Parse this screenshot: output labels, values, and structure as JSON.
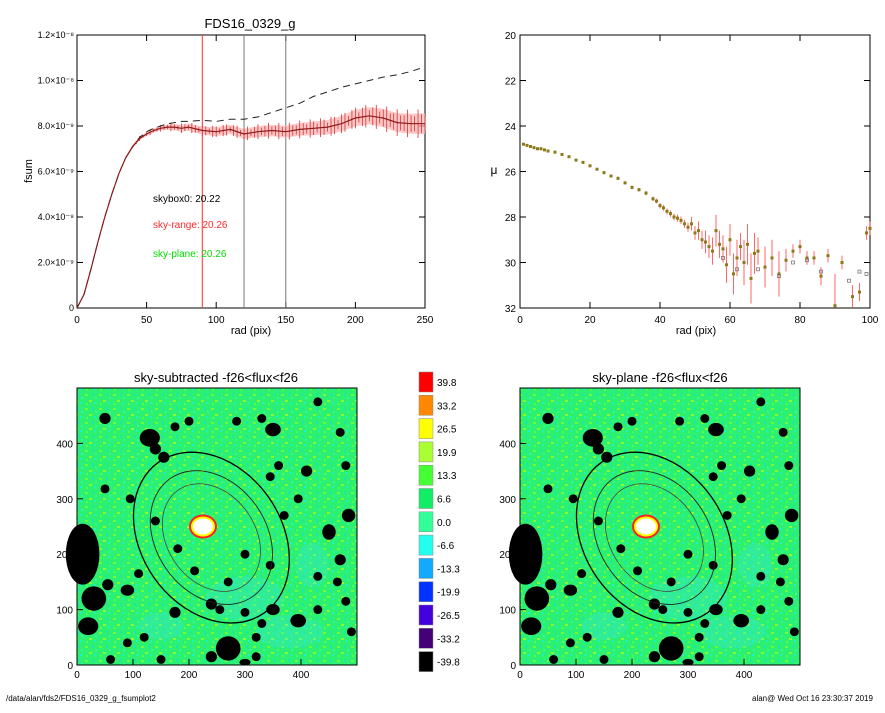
{
  "footer": {
    "path": "/data/alan/fds2/FDS16_0329_g_fsumplot2",
    "stamp": "alan@  Wed Oct 16 23:30:37 2019"
  },
  "chart_data": [
    {
      "type": "line",
      "title": "FDS16_0329_g",
      "xlabel": "rad (pix)",
      "ylabel": "fsum",
      "xlim": [
        0,
        250
      ],
      "ylim": [
        0,
        1.2e-08
      ],
      "xticks": [
        "0",
        "50",
        "100",
        "150",
        "200",
        "250"
      ],
      "yticks": [
        "0",
        "2.0×10⁻⁹",
        "4.0×10⁻⁹",
        "6.0×10⁻⁹",
        "8.0×10⁻⁹",
        "1.0×10⁻⁸",
        "1.2×10⁻⁸"
      ],
      "ytick_values": [
        0,
        2e-09,
        4e-09,
        6e-09,
        8e-09,
        1e-08,
        1.2e-08
      ],
      "vlines": [
        {
          "x": 90,
          "color": "#ff2a2a"
        },
        {
          "x": 120,
          "color": "#777777"
        },
        {
          "x": 150,
          "color": "#777777"
        }
      ],
      "annotations": [
        {
          "text": "skybox0: 20.22",
          "color": "#000000"
        },
        {
          "text": "sky-range: 20.26",
          "color": "#ff2a2a"
        },
        {
          "text": "sky-plane: 20.26",
          "color": "#00dd00"
        }
      ],
      "series": [
        {
          "style": "dashed",
          "color": "#222222",
          "x": [
            0,
            5,
            10,
            15,
            20,
            25,
            30,
            35,
            40,
            45,
            50,
            55,
            60,
            65,
            70,
            75,
            80,
            90,
            100,
            110,
            120,
            130,
            140,
            150,
            160,
            170,
            180,
            190,
            200,
            210,
            220,
            230,
            240,
            250
          ],
          "y": [
            0,
            6e-10,
            1.7e-09,
            2.9e-09,
            4e-09,
            5e-09,
            5.9e-09,
            6.6e-09,
            7.1e-09,
            7.5e-09,
            7.75e-09,
            7.9e-09,
            8e-09,
            8.1e-09,
            8.15e-09,
            8.2e-09,
            8.2e-09,
            8.25e-09,
            8.2e-09,
            8.3e-09,
            8.3e-09,
            8.4e-09,
            8.6e-09,
            8.8e-09,
            9e-09,
            9.3e-09,
            9.5e-09,
            9.7e-09,
            9.85e-09,
            1e-08,
            1.015e-08,
            1.025e-08,
            1.04e-08,
            1.06e-08
          ]
        },
        {
          "style": "solid-errorbars",
          "color": "#8b1a1a",
          "errcolor": "#ff6060",
          "x": [
            0,
            5,
            10,
            15,
            20,
            25,
            30,
            35,
            40,
            45,
            50,
            55,
            60,
            65,
            70,
            75,
            80,
            90,
            100,
            110,
            120,
            130,
            140,
            150,
            160,
            170,
            180,
            190,
            200,
            210,
            220,
            230,
            240,
            250
          ],
          "y": [
            0,
            6e-10,
            1.7e-09,
            2.9e-09,
            4e-09,
            5e-09,
            5.9e-09,
            6.6e-09,
            7.1e-09,
            7.45e-09,
            7.65e-09,
            7.8e-09,
            7.9e-09,
            7.95e-09,
            7.95e-09,
            7.9e-09,
            7.95e-09,
            7.8e-09,
            7.75e-09,
            7.85e-09,
            7.65e-09,
            7.75e-09,
            7.8e-09,
            7.75e-09,
            7.85e-09,
            7.9e-09,
            7.95e-09,
            8.1e-09,
            8.35e-09,
            8.45e-09,
            8.35e-09,
            8.15e-09,
            8.1e-09,
            8.1e-09
          ],
          "err": [
            0,
            0,
            0,
            0,
            0,
            0,
            0,
            5e-11,
            7e-11,
            8e-11,
            9e-11,
            1e-10,
            1e-10,
            1.2e-10,
            1.4e-10,
            1.5e-10,
            1.6e-10,
            1.8e-10,
            2e-10,
            2e-10,
            2.2e-10,
            2.4e-10,
            2.5e-10,
            2.6e-10,
            2.8e-10,
            3e-10,
            3.2e-10,
            3.4e-10,
            3.6e-10,
            3.8e-10,
            4e-10,
            4.2e-10,
            4.4e-10,
            4.6e-10
          ]
        }
      ]
    },
    {
      "type": "scatter",
      "xlabel": "rad (pix)",
      "ylabel": "μ",
      "xlim": [
        0,
        100
      ],
      "ylim": [
        32,
        20
      ],
      "xticks": [
        "0",
        "20",
        "40",
        "60",
        "80",
        "100"
      ],
      "yticks": [
        "20",
        "22",
        "24",
        "26",
        "28",
        "30",
        "32"
      ],
      "ytick_values": [
        20,
        22,
        24,
        26,
        28,
        30,
        32
      ],
      "series": [
        {
          "color": "#8b7a1a",
          "x": [
            1,
            2,
            3,
            4,
            5,
            6,
            7,
            8,
            10,
            12,
            14,
            16,
            18,
            20,
            22,
            24,
            26,
            28,
            30,
            32,
            34,
            36,
            38,
            39,
            40,
            41,
            42,
            43,
            44,
            45,
            46,
            47,
            48,
            49,
            50,
            51,
            52,
            53,
            54,
            55,
            56,
            57,
            58,
            59,
            60,
            61,
            62,
            63,
            64,
            65,
            66,
            67,
            68,
            70,
            72,
            74,
            76,
            78,
            80,
            82,
            84,
            86,
            88,
            90,
            92,
            95,
            97,
            99,
            100
          ],
          "y": [
            24.8,
            24.85,
            24.9,
            24.95,
            25.0,
            25.0,
            25.05,
            25.1,
            25.15,
            25.25,
            25.35,
            25.5,
            25.6,
            25.75,
            25.9,
            26.05,
            26.2,
            26.3,
            26.5,
            26.7,
            26.8,
            26.95,
            27.2,
            27.3,
            27.5,
            27.6,
            27.75,
            27.85,
            28.0,
            28.05,
            28.15,
            28.3,
            28.45,
            28.3,
            28.7,
            28.6,
            29.0,
            29.1,
            29.3,
            29.5,
            28.6,
            29.2,
            29.4,
            30.1,
            29.0,
            30.5,
            29.8,
            29.3,
            30.0,
            29.2,
            30.7,
            29.6,
            29.5,
            30.2,
            29.8,
            30.5,
            29.9,
            29.5,
            29.3,
            29.8,
            29.8,
            30.6,
            29.7,
            31.9,
            30.0,
            31.5,
            31.3,
            28.7,
            28.5
          ],
          "err": [
            0.02,
            0.02,
            0.02,
            0.02,
            0.02,
            0.02,
            0.03,
            0.03,
            0.03,
            0.03,
            0.04,
            0.04,
            0.05,
            0.05,
            0.05,
            0.06,
            0.06,
            0.07,
            0.07,
            0.08,
            0.08,
            0.1,
            0.1,
            0.1,
            0.12,
            0.12,
            0.13,
            0.14,
            0.15,
            0.16,
            0.17,
            0.18,
            0.2,
            0.3,
            0.3,
            0.4,
            0.4,
            0.5,
            0.5,
            0.6,
            0.7,
            0.6,
            0.6,
            0.8,
            0.7,
            0.9,
            0.8,
            0.6,
            1.0,
            0.9,
            1.1,
            0.9,
            0.6,
            0.9,
            0.8,
            1.0,
            0.5,
            0.3,
            0.3,
            0.3,
            0.3,
            0.4,
            0.3,
            1.4,
            0.3,
            0.5,
            0.4,
            0.3,
            0.3
          ]
        }
      ]
    },
    {
      "type": "heatmap",
      "title": "sky-subtracted -f26<flux<f26",
      "xlim": [
        0,
        500
      ],
      "ylim": [
        0,
        500
      ],
      "xticks": [
        "0",
        "100",
        "200",
        "300",
        "400"
      ],
      "yticks": [
        "0",
        "100",
        "200",
        "300",
        "400"
      ]
    },
    {
      "type": "heatmap",
      "title": "sky-plane -f26<flux<f26",
      "xlim": [
        0,
        500
      ],
      "ylim": [
        0,
        500
      ],
      "xticks": [
        "0",
        "100",
        "200",
        "300",
        "400"
      ],
      "yticks": [
        "0",
        "100",
        "200",
        "300",
        "400"
      ]
    }
  ],
  "colorbar": {
    "labels": [
      "39.8",
      "33.2",
      "26.5",
      "19.9",
      "13.3",
      "6.6",
      "0.0",
      "-6.6",
      "-13.3",
      "-19.9",
      "-26.5",
      "-33.2",
      "-39.8"
    ],
    "colors": [
      "#ff0000",
      "#ff8800",
      "#ffff00",
      "#aaff33",
      "#44ff33",
      "#11ee66",
      "#33ff99",
      "#22ffee",
      "#11aaff",
      "#0033ff",
      "#4400dd",
      "#440077",
      "#000000"
    ]
  }
}
